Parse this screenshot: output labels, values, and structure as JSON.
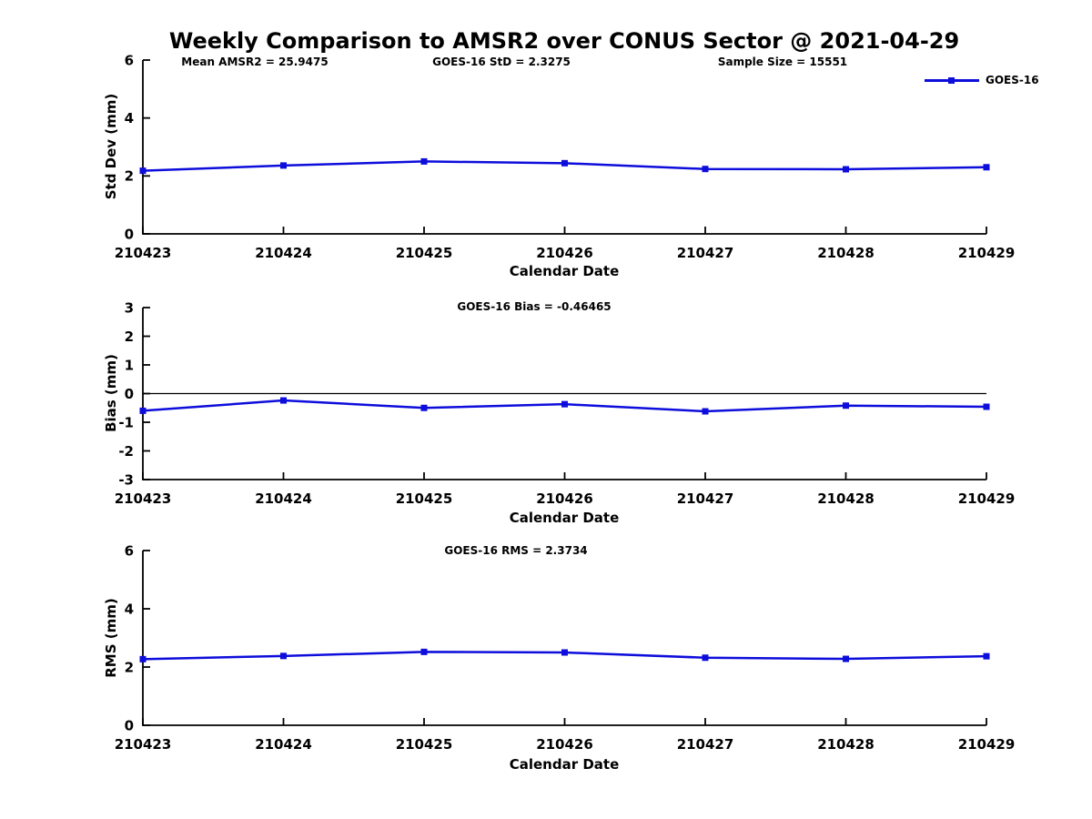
{
  "figure": {
    "title": "Weekly Comparison to AMSR2 over CONUS Sector @ 2021-04-29",
    "background": "#ffffff"
  },
  "legend": {
    "label": "GOES-16",
    "position": "top-right",
    "marker": "filled-square"
  },
  "colors": {
    "series_blue": "#0d0ddc",
    "axis": "#000000",
    "text": "#000000"
  },
  "x_axis": {
    "label": "Calendar Date",
    "categories": [
      "210423",
      "210424",
      "210425",
      "210426",
      "210427",
      "210428",
      "210429"
    ]
  },
  "chart_data": [
    {
      "type": "line",
      "series_name": "GOES-16",
      "ylabel": "Std Dev (mm)",
      "xlabel": "Calendar Date",
      "ylim": [
        0,
        6
      ],
      "yticks": [
        0,
        2,
        4,
        6
      ],
      "categories": [
        "210423",
        "210424",
        "210425",
        "210426",
        "210427",
        "210428",
        "210429"
      ],
      "values": [
        2.18,
        2.36,
        2.5,
        2.44,
        2.24,
        2.23,
        2.3
      ],
      "grid": false,
      "zero_line": false,
      "marker": "square",
      "annotations": [
        {
          "text": "Mean AMSR2 = 25.9475"
        },
        {
          "text": "GOES-16 StD = 2.3275"
        },
        {
          "text": "Sample Size = 15551"
        }
      ]
    },
    {
      "type": "line",
      "series_name": "GOES-16",
      "ylabel": "Bias (mm)",
      "xlabel": "Calendar Date",
      "ylim": [
        -3,
        3
      ],
      "yticks": [
        -3,
        -2,
        -1,
        0,
        1,
        2,
        3
      ],
      "categories": [
        "210423",
        "210424",
        "210425",
        "210426",
        "210427",
        "210428",
        "210429"
      ],
      "values": [
        -0.6,
        -0.24,
        -0.5,
        -0.37,
        -0.62,
        -0.42,
        -0.46
      ],
      "grid": false,
      "zero_line": true,
      "marker": "square",
      "annotations": [
        {
          "text": "GOES-16 Bias  = -0.46465"
        }
      ]
    },
    {
      "type": "line",
      "series_name": "GOES-16",
      "ylabel": "RMS (mm)",
      "xlabel": "Calendar Date",
      "ylim": [
        0,
        6
      ],
      "yticks": [
        0,
        2,
        4,
        6
      ],
      "categories": [
        "210423",
        "210424",
        "210425",
        "210426",
        "210427",
        "210428",
        "210429"
      ],
      "values": [
        2.27,
        2.38,
        2.52,
        2.5,
        2.32,
        2.28,
        2.37
      ],
      "grid": false,
      "zero_line": false,
      "marker": "square",
      "annotations": [
        {
          "text": "GOES-16 RMS = 2.3734"
        }
      ]
    }
  ]
}
